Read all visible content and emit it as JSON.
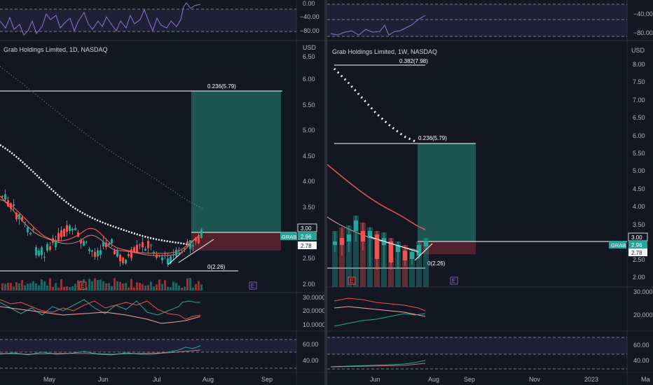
{
  "colors": {
    "bg": "#131722",
    "grid": "#2a2e39",
    "up": "#26a69a",
    "down": "#ef5350",
    "fib": "#ffffff",
    "rsi_band": "#7e57c2",
    "position_profit": "#1e5f59",
    "position_loss": "#5b2530"
  },
  "left": {
    "title": "Grab Holdings Limited, 1D, NASDAQ",
    "currency": "USD",
    "top_axis": [
      "0.00",
      "−40.00",
      "−80.00"
    ],
    "price_axis": [
      "6.50",
      "6.00",
      "5.50",
      "5.00",
      "4.50",
      "4.00",
      "3.50",
      "2.50",
      "2.00"
    ],
    "price_tags": {
      "target": "3.00",
      "symbol": "GRAB",
      "last": "2.96",
      "stop": "2.78"
    },
    "fib": {
      "upper": "0.236(5.79)",
      "lower": "0(2.26)"
    },
    "earnings": "E",
    "osc_axis": [
      "30.0000",
      "20.0000",
      "10.0000"
    ],
    "rsi_axis": [
      "60.00",
      "40.00"
    ],
    "time_axis": [
      "May",
      "Jun",
      "Jul",
      "Aug",
      "Sep"
    ]
  },
  "right": {
    "title": "Grab Holdings Limited, 1W, NASDAQ",
    "currency": "USD",
    "top_axis": [
      "−40.00",
      "−80.00"
    ],
    "price_axis": [
      "8.00",
      "7.50",
      "7.00",
      "6.50",
      "6.00",
      "5.50",
      "5.00",
      "4.50",
      "4.00",
      "3.50",
      "2.50",
      "2.00"
    ],
    "price_tags": {
      "target": "3.00",
      "symbol": "GRAB",
      "last": "2.96",
      "stop": "2.78"
    },
    "fib": {
      "top": "0.382(7.98)",
      "upper": "0.236(5.79)",
      "lower": "0(2.26)"
    },
    "earnings": "E",
    "osc_axis": [
      "30.0000",
      "20.0000"
    ],
    "rsi_axis": [
      "60.00",
      "40.00"
    ],
    "time_axis": [
      "Jun",
      "Aug",
      "Sep",
      "Nov",
      "2023",
      "Ma"
    ]
  }
}
